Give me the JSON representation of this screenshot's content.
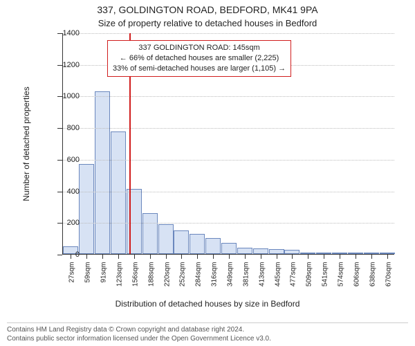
{
  "title": "337, GOLDINGTON ROAD, BEDFORD, MK41 9PA",
  "subtitle": "Size of property relative to detached houses in Bedford",
  "chart": {
    "type": "histogram",
    "y_axis": {
      "title": "Number of detached properties",
      "min": 0,
      "max": 1400,
      "ticks": [
        0,
        200,
        400,
        600,
        800,
        1000,
        1200,
        1400
      ],
      "label_fontsize": 11
    },
    "x_axis": {
      "title": "Distribution of detached houses by size in Bedford",
      "labels": [
        "27sqm",
        "59sqm",
        "91sqm",
        "123sqm",
        "156sqm",
        "188sqm",
        "220sqm",
        "252sqm",
        "284sqm",
        "316sqm",
        "349sqm",
        "381sqm",
        "413sqm",
        "445sqm",
        "477sqm",
        "509sqm",
        "541sqm",
        "574sqm",
        "606sqm",
        "638sqm",
        "670sqm"
      ],
      "label_fontsize": 10
    },
    "bars": {
      "values": [
        50,
        570,
        1030,
        775,
        410,
        260,
        190,
        150,
        125,
        100,
        70,
        40,
        35,
        30,
        25,
        10,
        5,
        3,
        3,
        3,
        2
      ],
      "fill_color": "#d7e2f4",
      "border_color": "#6a87bd",
      "bar_width_ratio": 0.96
    },
    "reference_line": {
      "position_index": 3.7,
      "color": "#d01c1c"
    },
    "annotation": {
      "border_color": "#d01c1c",
      "background_color": "#ffffff",
      "line1": "337 GOLDINGTON ROAD: 145sqm",
      "line2": "← 66% of detached houses are smaller (2,225)",
      "line3": "33% of semi-detached houses are larger (1,105) →"
    },
    "grid_color": "#bbbbbb",
    "background_color": "#ffffff"
  },
  "footer": {
    "line1": "Contains HM Land Registry data © Crown copyright and database right 2024.",
    "line2": "Contains public sector information licensed under the Open Government Licence v3.0."
  }
}
